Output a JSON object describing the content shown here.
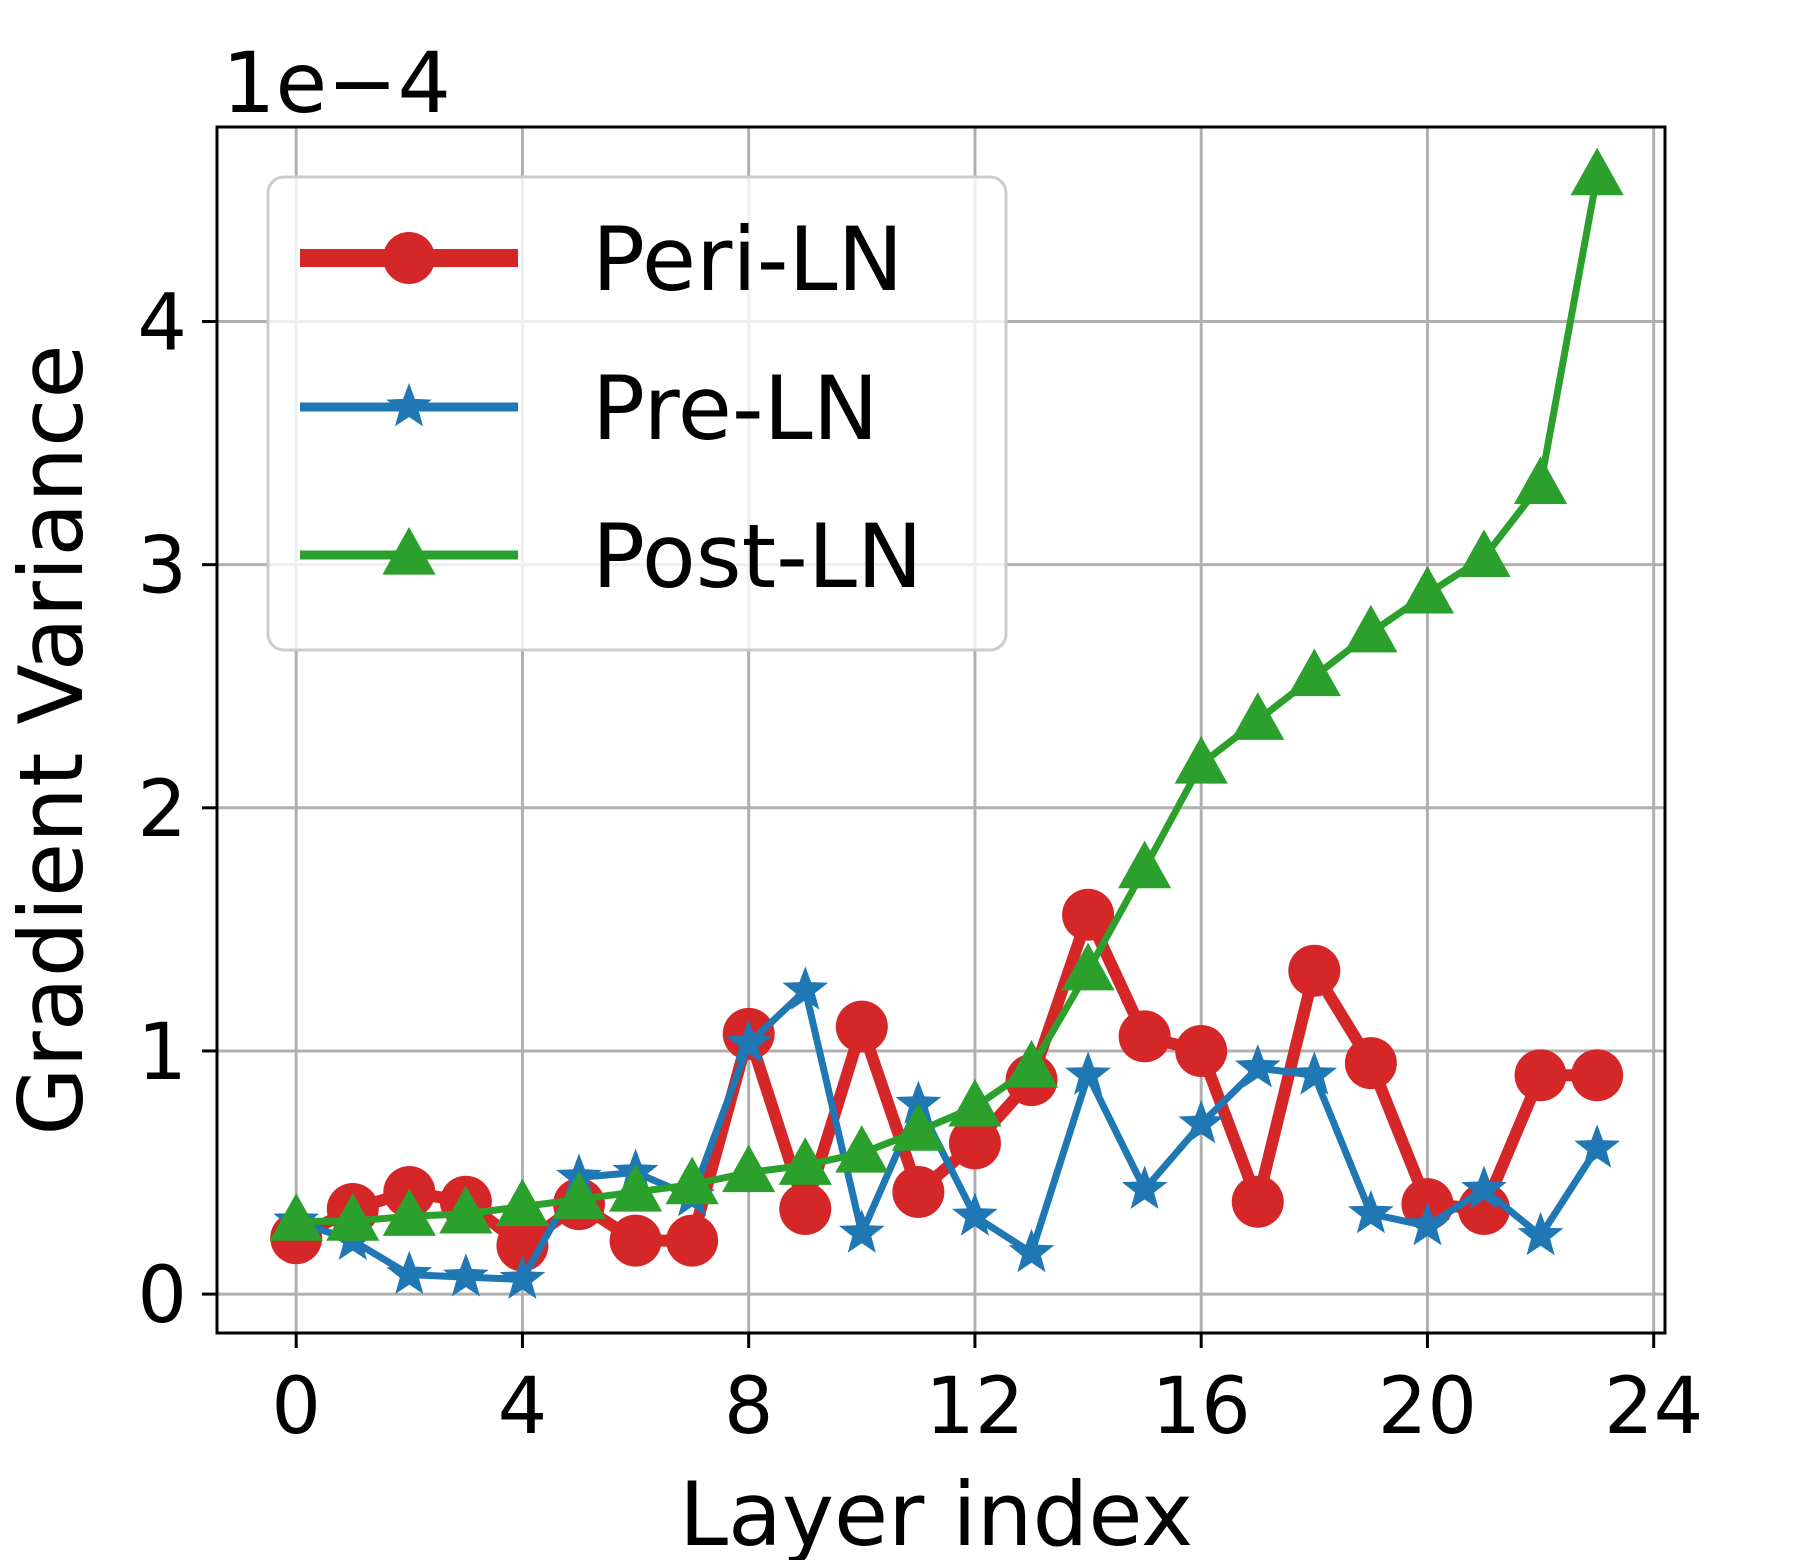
{
  "chart_data": {
    "type": "line",
    "title": "",
    "xlabel": "Layer index",
    "ylabel": "Gradient Variance",
    "scale_label": "1e−4",
    "xlim": [
      -1.4,
      24.2
    ],
    "ylim": [
      -0.16,
      4.8
    ],
    "xticks": [
      0,
      4,
      8,
      12,
      16,
      20,
      24
    ],
    "yticks": [
      0,
      1,
      2,
      3,
      4
    ],
    "grid": true,
    "legend_position": "top-left",
    "x": [
      0,
      1,
      2,
      3,
      4,
      5,
      6,
      7,
      8,
      9,
      10,
      11,
      12,
      13,
      14,
      15,
      16,
      17,
      18,
      19,
      20,
      21,
      22,
      23
    ],
    "series": [
      {
        "name": "Peri-LN",
        "color": "#d62728",
        "marker": "circle",
        "values": [
          0.23,
          0.35,
          0.42,
          0.38,
          0.2,
          0.37,
          0.22,
          0.22,
          1.07,
          0.35,
          1.1,
          0.42,
          0.62,
          0.88,
          1.56,
          1.06,
          1.0,
          0.38,
          1.33,
          0.95,
          0.37,
          0.35,
          0.9,
          0.9
        ]
      },
      {
        "name": "Pre-LN",
        "color": "#1f77b4",
        "marker": "star",
        "values": [
          0.3,
          0.22,
          0.08,
          0.07,
          0.06,
          0.48,
          0.5,
          0.4,
          1.03,
          1.25,
          0.25,
          0.78,
          0.32,
          0.17,
          0.9,
          0.43,
          0.7,
          0.93,
          0.9,
          0.33,
          0.28,
          0.43,
          0.24,
          0.6
        ]
      },
      {
        "name": "Post-LN",
        "color": "#2ca02c",
        "marker": "triangle",
        "values": [
          0.3,
          0.3,
          0.32,
          0.33,
          0.36,
          0.39,
          0.42,
          0.45,
          0.5,
          0.53,
          0.58,
          0.67,
          0.77,
          0.93,
          1.33,
          1.75,
          2.18,
          2.36,
          2.54,
          2.72,
          2.88,
          3.03,
          3.33,
          4.6
        ]
      }
    ]
  }
}
